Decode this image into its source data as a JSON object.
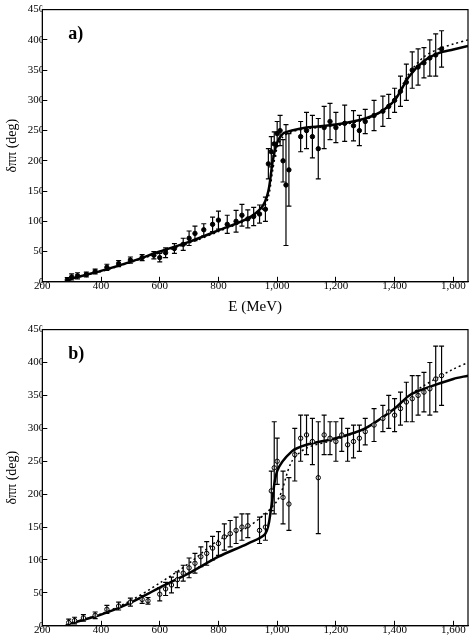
{
  "chart_data": [
    {
      "type": "scatter",
      "annotation": "a)",
      "xlabel": "E (MeV)",
      "ylabel": "δππ (deg)",
      "xlim": [
        200,
        1650
      ],
      "xticks": [
        200,
        400,
        600,
        800,
        1000,
        1200,
        1400,
        1600
      ],
      "ylim": [
        0,
        450
      ],
      "yticks": [
        0,
        50,
        100,
        150,
        200,
        250,
        300,
        350,
        400,
        450
      ],
      "grid": false,
      "series": [
        {
          "type": "scatter",
          "marker": "circle",
          "color": "#000000",
          "x": [
            285,
            300,
            320,
            350,
            380,
            420,
            460,
            500,
            540,
            580,
            600,
            620,
            650,
            680,
            700,
            720,
            750,
            780,
            800,
            830,
            860,
            880,
            900,
            920,
            940,
            960,
            970,
            980,
            990,
            1000,
            1010,
            1020,
            1030,
            1040,
            1080,
            1100,
            1120,
            1140,
            1160,
            1180,
            1200,
            1230,
            1260,
            1280,
            1300,
            1330,
            1360,
            1380,
            1400,
            1420,
            1440,
            1460,
            1480,
            1500,
            1520,
            1540,
            1560
          ],
          "values": [
            3,
            8,
            10,
            12,
            17,
            24,
            30,
            36,
            40,
            44,
            40,
            48,
            55,
            62,
            72,
            80,
            86,
            95,
            102,
            95,
            100,
            110,
            104,
            108,
            112,
            120,
            195,
            215,
            228,
            245,
            250,
            200,
            160,
            185,
            240,
            250,
            240,
            220,
            255,
            265,
            255,
            262,
            258,
            250,
            265,
            275,
            282,
            290,
            300,
            315,
            330,
            350,
            355,
            362,
            370,
            375,
            385
          ],
          "errors": [
            4,
            5,
            5,
            4,
            4,
            5,
            5,
            5,
            5,
            6,
            7,
            8,
            8,
            10,
            12,
            12,
            10,
            12,
            15,
            15,
            18,
            18,
            15,
            15,
            15,
            20,
            25,
            25,
            20,
            20,
            25,
            35,
            100,
            60,
            25,
            30,
            35,
            50,
            35,
            30,
            25,
            30,
            25,
            25,
            20,
            25,
            25,
            20,
            20,
            25,
            30,
            30,
            30,
            25,
            30,
            35,
            30
          ]
        },
        {
          "type": "line",
          "line_style": "solid",
          "color": "#000000",
          "x": [
            280,
            300,
            400,
            500,
            600,
            700,
            800,
            900,
            950,
            970,
            985,
            1000,
            1020,
            1050,
            1100,
            1200,
            1300,
            1350,
            1400,
            1450,
            1500,
            1550,
            1600,
            1650
          ],
          "values": [
            0,
            5,
            18,
            33,
            50,
            66,
            85,
            105,
            125,
            150,
            200,
            230,
            245,
            250,
            255,
            260,
            270,
            280,
            300,
            340,
            365,
            378,
            384,
            390
          ]
        },
        {
          "type": "line",
          "line_style": "dotted",
          "color": "#000000",
          "x": [
            280,
            300,
            400,
            500,
            600,
            700,
            800,
            900,
            950,
            970,
            985,
            1000,
            1020,
            1050,
            1100,
            1200,
            1300,
            1350,
            1400,
            1450,
            1500,
            1550,
            1600,
            1650
          ],
          "values": [
            0,
            5,
            17,
            32,
            48,
            64,
            83,
            103,
            120,
            140,
            185,
            222,
            240,
            248,
            253,
            258,
            268,
            280,
            303,
            345,
            372,
            385,
            393,
            400
          ]
        }
      ]
    },
    {
      "type": "scatter",
      "annotation": "b)",
      "ylabel": "δππ (deg)",
      "xlim": [
        200,
        1650
      ],
      "xticks": [
        200,
        400,
        600,
        800,
        1000,
        1200,
        1400,
        1600
      ],
      "ylim": [
        0,
        450
      ],
      "yticks": [
        0,
        50,
        100,
        150,
        200,
        250,
        300,
        350,
        400,
        450
      ],
      "grid": false,
      "series": [
        {
          "type": "scatter",
          "marker": "open_circle",
          "color": "#000000",
          "x": [
            290,
            310,
            340,
            380,
            420,
            460,
            500,
            540,
            560,
            600,
            620,
            640,
            660,
            680,
            700,
            720,
            740,
            760,
            780,
            800,
            820,
            840,
            860,
            880,
            900,
            940,
            960,
            980,
            990,
            1000,
            1020,
            1040,
            1060,
            1080,
            1100,
            1120,
            1140,
            1160,
            1180,
            1200,
            1220,
            1240,
            1260,
            1280,
            1300,
            1330,
            1360,
            1380,
            1400,
            1420,
            1440,
            1460,
            1480,
            1500,
            1520,
            1540,
            1560
          ],
          "values": [
            5,
            8,
            12,
            16,
            25,
            30,
            36,
            40,
            38,
            48,
            56,
            62,
            70,
            80,
            88,
            95,
            105,
            110,
            118,
            125,
            135,
            140,
            145,
            150,
            152,
            145,
            150,
            205,
            240,
            250,
            195,
            185,
            260,
            285,
            290,
            280,
            225,
            290,
            285,
            280,
            290,
            275,
            280,
            285,
            295,
            305,
            315,
            325,
            320,
            330,
            340,
            345,
            350,
            355,
            360,
            375,
            380
          ],
          "errors": [
            5,
            5,
            5,
            5,
            6,
            6,
            6,
            6,
            5,
            10,
            10,
            12,
            12,
            12,
            15,
            15,
            15,
            18,
            18,
            18,
            20,
            20,
            20,
            20,
            18,
            20,
            20,
            30,
            70,
            35,
            40,
            40,
            40,
            35,
            30,
            35,
            85,
            30,
            25,
            30,
            25,
            25,
            25,
            20,
            20,
            25,
            20,
            25,
            25,
            25,
            30,
            35,
            30,
            30,
            40,
            50,
            45
          ]
        },
        {
          "type": "line",
          "line_style": "solid",
          "color": "#000000",
          "x": [
            280,
            300,
            400,
            500,
            600,
            700,
            800,
            900,
            960,
            980,
            1000,
            1050,
            1100,
            1200,
            1300,
            1400,
            1450,
            1500,
            1600,
            1650
          ],
          "values": [
            0,
            4,
            17,
            35,
            58,
            80,
            105,
            125,
            140,
            180,
            235,
            265,
            275,
            285,
            300,
            330,
            350,
            360,
            375,
            380
          ]
        },
        {
          "type": "line",
          "line_style": "dotted",
          "color": "#000000",
          "x": [
            280,
            300,
            400,
            500,
            600,
            700,
            800,
            900,
            1000,
            1050,
            1100,
            1200,
            1300,
            1400,
            1450,
            1500,
            1600,
            1650
          ],
          "values": [
            0,
            4,
            18,
            38,
            65,
            95,
            130,
            150,
            190,
            250,
            270,
            283,
            300,
            330,
            350,
            365,
            390,
            400
          ]
        }
      ]
    }
  ]
}
